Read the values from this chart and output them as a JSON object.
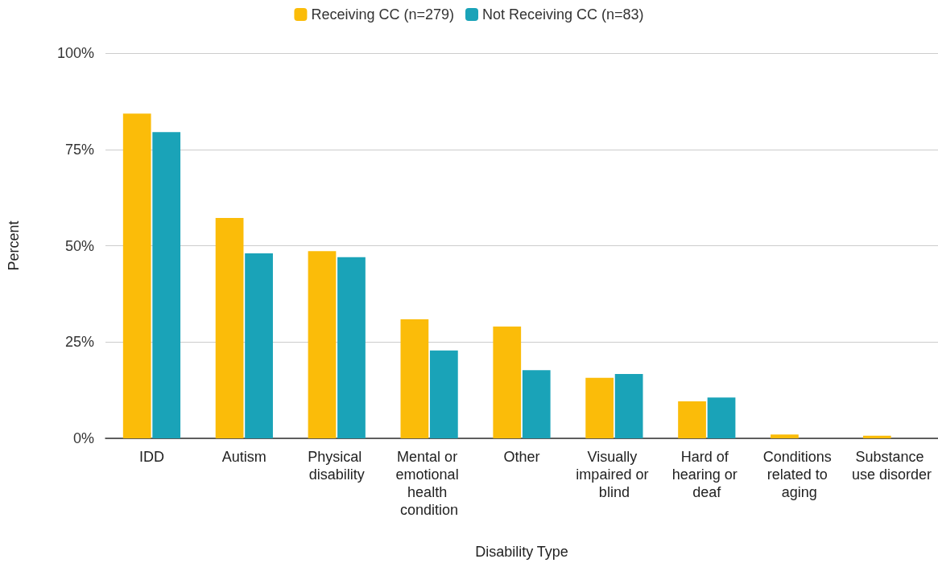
{
  "chart_data": {
    "type": "bar",
    "xlabel": "Disability Type",
    "ylabel": "Percent",
    "categories": [
      "IDD",
      "Autism",
      "Physical disability",
      "Mental or emotional health condition",
      "Other",
      "Visually impaired or blind",
      "Hard of hearing or deaf",
      "Conditions related to aging",
      "Substance use disorder"
    ],
    "series": [
      {
        "name": "Receiving CC (n=279)",
        "color": "#fbbc09",
        "values": [
          84.3,
          57.2,
          48.6,
          30.9,
          29.0,
          15.7,
          9.6,
          1.0,
          0.7
        ]
      },
      {
        "name": "Not Receiving CC (n=83)",
        "color": "#1aa3b8",
        "values": [
          79.5,
          48.0,
          47.0,
          22.8,
          17.7,
          16.7,
          10.6,
          0,
          0
        ]
      }
    ],
    "ylim": [
      0,
      100
    ],
    "yticks": [
      {
        "value": 0,
        "label": "0%"
      },
      {
        "value": 25,
        "label": "25%"
      },
      {
        "value": 50,
        "label": "50%"
      },
      {
        "value": 75,
        "label": "75%"
      },
      {
        "value": 100,
        "label": "100%"
      }
    ],
    "grid": "y",
    "legend": "top"
  }
}
